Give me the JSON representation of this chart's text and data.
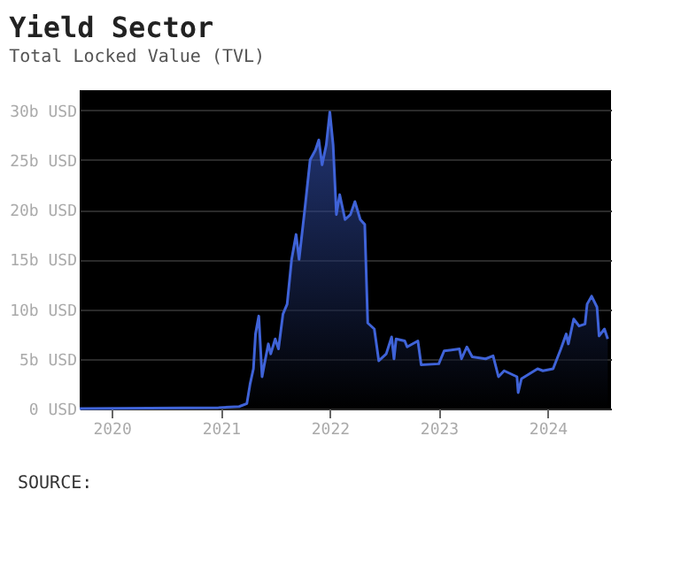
{
  "chart_data": {
    "type": "area",
    "title": "Yield Sector",
    "subtitle": "Total Locked Value (TVL)",
    "annotations": [
      "SOURCE:"
    ],
    "x": [
      "2019-09-16",
      "2020-12-24",
      "2021-03-03",
      "2021-03-29",
      "2021-04-09",
      "2021-04-20",
      "2021-04-27",
      "2021-05-08",
      "2021-05-19",
      "2021-05-27",
      "2021-06-09",
      "2021-06-17",
      "2021-07-02",
      "2021-07-13",
      "2021-07-28",
      "2021-08-11",
      "2021-08-26",
      "2021-09-10",
      "2021-09-20",
      "2021-10-09",
      "2021-10-27",
      "2021-11-14",
      "2021-11-25",
      "2021-12-06",
      "2021-12-20",
      "2022-01-01",
      "2022-01-12",
      "2022-01-23",
      "2022-02-03",
      "2022-02-21",
      "2022-03-11",
      "2022-03-26",
      "2022-04-13",
      "2022-04-28",
      "2022-05-08",
      "2022-05-30",
      "2022-06-14",
      "2022-07-09",
      "2022-07-27",
      "2022-08-04",
      "2022-08-11",
      "2022-09-09",
      "2022-09-17",
      "2022-10-23",
      "2022-11-03",
      "2023-01-01",
      "2023-01-19",
      "2023-03-11",
      "2023-03-18",
      "2023-04-05",
      "2023-04-23",
      "2023-06-07",
      "2023-07-02",
      "2023-07-20",
      "2023-08-08",
      "2023-09-20",
      "2023-09-24",
      "2023-10-05",
      "2023-11-28",
      "2023-12-16",
      "2024-01-19",
      "2024-02-14",
      "2024-03-03",
      "2024-03-10",
      "2024-03-28",
      "2024-04-15",
      "2024-05-05",
      "2024-05-12",
      "2024-05-27",
      "2024-06-14",
      "2024-06-21",
      "2024-07-09",
      "2024-07-20"
    ],
    "series": [
      {
        "color": "#3f63d8",
        "values": [
          0,
          0.1,
          0.2,
          0.5,
          2.5,
          4,
          7.5,
          9.3,
          3.2,
          4.5,
          6.5,
          5.5,
          7,
          6,
          9.5,
          10.5,
          15,
          17.5,
          15,
          20,
          25,
          26,
          27,
          24.5,
          26.5,
          29.8,
          26.5,
          19.5,
          21.5,
          19,
          19.5,
          20.8,
          19,
          18.5,
          8.6,
          8,
          4.8,
          5.5,
          7.2,
          5,
          7,
          6.8,
          6.2,
          6.8,
          4.4,
          4.5,
          5.8,
          6,
          5,
          6.2,
          5.2,
          5,
          5.3,
          3.2,
          3.8,
          3.2,
          1.6,
          3,
          4,
          3.8,
          4,
          6,
          7.5,
          6.5,
          9,
          8.3,
          8.5,
          10.5,
          11.3,
          10.2,
          7.3,
          8,
          7
        ]
      }
    ],
    "xlim": [
      "2019-09-16",
      "2024-07-31"
    ],
    "xticks": [
      {
        "value": "2020-01-01",
        "label": "2020"
      },
      {
        "value": "2021-01-01",
        "label": "2021"
      },
      {
        "value": "2022-01-01",
        "label": "2022"
      },
      {
        "value": "2023-01-01",
        "label": "2023"
      },
      {
        "value": "2024-01-01",
        "label": "2024"
      }
    ],
    "ylim": [
      0,
      32
    ],
    "yticks": [
      {
        "value": 0,
        "label": "0 USD"
      },
      {
        "value": 5,
        "label": "5b USD"
      },
      {
        "value": 10,
        "label": "10b USD"
      },
      {
        "value": 15,
        "label": "15b USD"
      },
      {
        "value": 20,
        "label": "20b USD"
      },
      {
        "value": 25,
        "label": "25b USD"
      },
      {
        "value": 30,
        "label": "30b USD"
      }
    ],
    "grid": "y"
  }
}
